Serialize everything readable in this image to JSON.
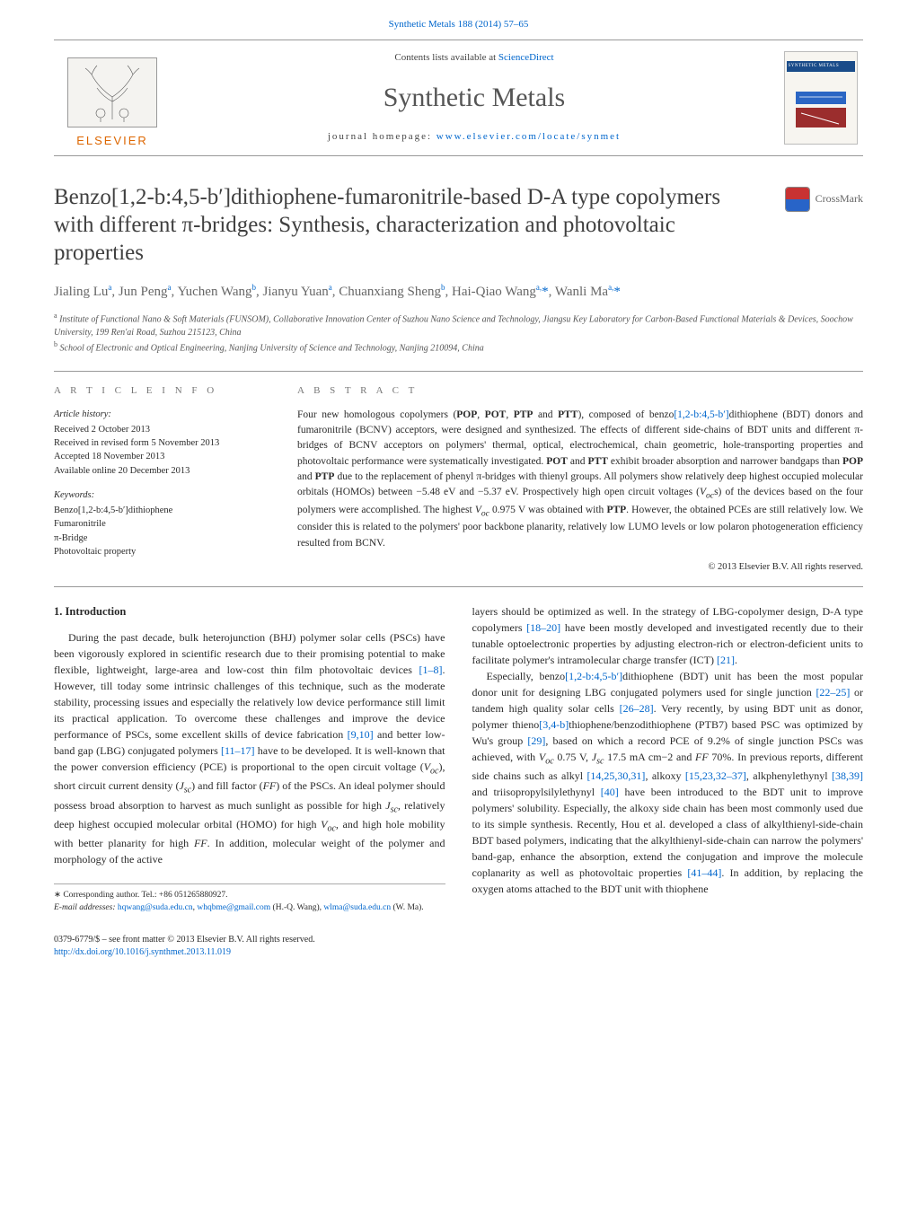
{
  "header": {
    "top_ref": "Synthetic Metals 188 (2014) 57–65",
    "contents_prefix": "Contents lists available at ",
    "contents_link": "ScienceDirect",
    "journal": "Synthetic Metals",
    "homepage_label": "journal homepage: ",
    "homepage_url": "www.elsevier.com/locate/synmet",
    "publisher_word": "ELSEVIER",
    "cover_label": "SYNTHETIC METALS"
  },
  "crossmark": {
    "label": "CrossMark"
  },
  "title": "Benzo[1,2-b:4,5-b′]dithiophene-fumaronitrile-based D-A type copolymers with different π-bridges: Synthesis, characterization and photovoltaic properties",
  "authors_html": "Jialing Lu<sup>a</sup>, Jun Peng<sup>a</sup>, Yuchen Wang<sup>b</sup>, Jianyu Yuan<sup>a</sup>, Chuanxiang Sheng<sup>b</sup>, Hai-Qiao Wang<sup>a,</sup><span class='star'>*</span>, Wanli Ma<sup>a,</sup><span class='star'>*</span>",
  "affiliations": {
    "a": "Institute of Functional Nano & Soft Materials (FUNSOM), Collaborative Innovation Center of Suzhou Nano Science and Technology, Jiangsu Key Laboratory for Carbon-Based Functional Materials & Devices, Soochow University, 199 Ren'ai Road, Suzhou 215123, China",
    "b": "School of Electronic and Optical Engineering, Nanjing University of Science and Technology, Nanjing 210094, China"
  },
  "article_info": {
    "head": "A R T I C L E   I N F O",
    "history_head": "Article history:",
    "received": "Received 2 October 2013",
    "revised": "Received in revised form 5 November 2013",
    "accepted": "Accepted 18 November 2013",
    "online": "Available online 20 December 2013",
    "keywords_head": "Keywords:",
    "keywords": [
      "Benzo[1,2-b:4,5-b′]dithiophene",
      "Fumaronitrile",
      "π-Bridge",
      "Photovoltaic property"
    ]
  },
  "abstract": {
    "head": "A B S T R A C T",
    "text": "Four new homologous copolymers (POP, POT, PTP and PTT), composed of benzo[1,2-b:4,5-b′]dithiophene (BDT) donors and fumaronitrile (BCNV) acceptors, were designed and synthesized. The effects of different side-chains of BDT units and different π-bridges of BCNV acceptors on polymers' thermal, optical, electrochemical, chain geometric, hole-transporting properties and photovoltaic performance were systematically investigated. POT and PTT exhibit broader absorption and narrower bandgaps than POP and PTP due to the replacement of phenyl π-bridges with thienyl groups. All polymers show relatively deep highest occupied molecular orbitals (HOMOs) between −5.48 eV and −5.37 eV. Prospectively high open circuit voltages (Vocs) of the devices based on the four polymers were accomplished. The highest Voc 0.975 V was obtained with PTP. However, the obtained PCEs are still relatively low. We consider this is related to the polymers' poor backbone planarity, relatively low LUMO levels or low polaron photogeneration efficiency resulted from BCNV.",
    "copyright": "© 2013 Elsevier B.V. All rights reserved."
  },
  "body": {
    "sec1_head": "1.  Introduction",
    "p1": "During the past decade, bulk heterojunction (BHJ) polymer solar cells (PSCs) have been vigorously explored in scientific research due to their promising potential to make flexible, lightweight, large-area and low-cost thin film photovoltaic devices [1–8]. However, till today some intrinsic challenges of this technique, such as the moderate stability, processing issues and especially the relatively low device performance still limit its practical application. To overcome these challenges and improve the device performance of PSCs, some excellent skills of device fabrication [9,10] and better low-band gap (LBG) conjugated polymers [11–17] have to be developed. It is well-known that the power conversion efficiency (PCE) is proportional to the open circuit voltage (Voc), short circuit current density (Jsc) and fill factor (FF) of the PSCs. An ideal polymer should possess broad absorption to harvest as much sunlight as possible for high Jsc, relatively deep highest occupied molecular orbital (HOMO) for high Voc, and high hole mobility with better planarity for high FF. In addition, molecular weight of the polymer and morphology of the active",
    "p2": "layers should be optimized as well. In the strategy of LBG-copolymer design, D-A type copolymers [18–20] have been mostly developed and investigated recently due to their tunable optoelectronic properties by adjusting electron-rich or electron-deficient units to facilitate polymer's intramolecular charge transfer (ICT) [21].",
    "p3": "Especially, benzo[1,2-b:4,5-b′]dithiophene (BDT) unit has been the most popular donor unit for designing LBG conjugated polymers used for single junction [22–25] or tandem high quality solar cells [26–28]. Very recently, by using BDT unit as donor, polymer thieno[3,4-b]thiophene/benzodithiophene (PTB7) based PSC was optimized by Wu's group [29], based on which a record PCE of 9.2% of single junction PSCs was achieved, with Voc 0.75 V, Jsc 17.5 mA cm−2 and FF 70%. In previous reports, different side chains such as alkyl [14,25,30,31], alkoxy [15,23,32–37], alkphenylethynyl [38,39] and triisopropylsilylethynyl [40] have been introduced to the BDT unit to improve polymers' solubility. Especially, the alkoxy side chain has been most commonly used due to its simple synthesis. Recently, Hou et al. developed a class of alkylthienyl-side-chain BDT based polymers, indicating that the alkylthienyl-side-chain can narrow the polymers' band-gap, enhance the absorption, extend the conjugation and improve the molecule coplanarity as well as photovoltaic properties [41–44]. In addition, by replacing the oxygen atoms attached to the BDT unit with thiophene"
  },
  "footnote": {
    "corr": "∗ Corresponding author. Tel.: +86 051265880927.",
    "email_label": "E-mail addresses: ",
    "email1": "hqwang@suda.edu.cn",
    "email1_tail": ", ",
    "email2": "whqbme@gmail.com",
    "email2_tail": " (H.-Q. Wang), ",
    "email3": "wlma@suda.edu.cn",
    "email3_tail": " (W. Ma)."
  },
  "footer": {
    "left1": "0379-6779/$ – see front matter © 2013 Elsevier B.V. All rights reserved.",
    "left2": "http://dx.doi.org/10.1016/j.synthmet.2013.11.019"
  },
  "links": {
    "color": "#0066cc"
  }
}
